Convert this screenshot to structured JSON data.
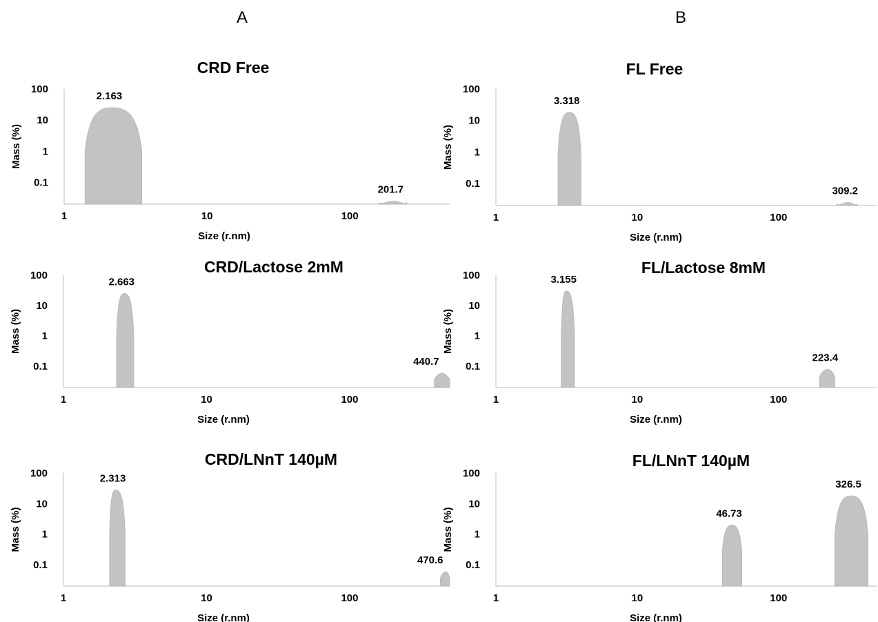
{
  "columns": [
    "A",
    "B"
  ],
  "chart_data": [
    {
      "type": "area",
      "title": "CRD Free",
      "xlabel": "Size (r.nm)",
      "ylabel": "Mass (%)",
      "x_scale": "log",
      "y_scale": "log",
      "xlim": [
        1,
        500
      ],
      "ylim": [
        0.02,
        100
      ],
      "x_ticks": [
        "1",
        "10",
        "100"
      ],
      "y_ticks": [
        "100",
        "10",
        "1",
        "0.1"
      ],
      "peaks": [
        {
          "label": "2.163",
          "x": 2.163,
          "peak_mass": 25,
          "x_start": 1.4,
          "x_end": 3.5
        },
        {
          "label": "201.7",
          "x": 201.7,
          "peak_mass": 0.025,
          "x_start": 160,
          "x_end": 250
        }
      ]
    },
    {
      "type": "area",
      "title": "FL Free",
      "xlabel": "Size (r.nm)",
      "ylabel": "Mass (%)",
      "x_scale": "log",
      "y_scale": "log",
      "xlim": [
        1,
        500
      ],
      "ylim": [
        0.02,
        100
      ],
      "x_ticks": [
        "1",
        "10",
        "100"
      ],
      "y_ticks": [
        "100",
        "10",
        "1",
        "0.1"
      ],
      "peaks": [
        {
          "label": "3.318",
          "x": 3.318,
          "peak_mass": 18,
          "x_start": 2.75,
          "x_end": 4.0
        },
        {
          "label": "309.2",
          "x": 309.2,
          "peak_mass": 0.025,
          "x_start": 260,
          "x_end": 360
        }
      ]
    },
    {
      "type": "area",
      "title": "CRD/Lactose 2mM",
      "xlabel": "Size (r.nm)",
      "ylabel": "Mass (%)",
      "x_scale": "log",
      "y_scale": "log",
      "xlim": [
        1,
        500
      ],
      "ylim": [
        0.02,
        100
      ],
      "x_ticks": [
        "1",
        "10",
        "100"
      ],
      "y_ticks": [
        "100",
        "10",
        "1",
        "0.1"
      ],
      "peaks": [
        {
          "label": "2.663",
          "x": 2.663,
          "peak_mass": 25,
          "x_start": 2.35,
          "x_end": 3.1
        },
        {
          "label": "440.7",
          "x": 440.7,
          "peak_mass": 0.06,
          "x_start": 390,
          "x_end": 500
        }
      ]
    },
    {
      "type": "area",
      "title": "FL/Lactose 8mM",
      "xlabel": "Size (r.nm)",
      "ylabel": "Mass (%)",
      "x_scale": "log",
      "y_scale": "log",
      "xlim": [
        1,
        500
      ],
      "ylim": [
        0.02,
        100
      ],
      "x_ticks": [
        "1",
        "10",
        "100"
      ],
      "y_ticks": [
        "100",
        "10",
        "1",
        "0.1"
      ],
      "peaks": [
        {
          "label": "3.155",
          "x": 3.155,
          "peak_mass": 30,
          "x_start": 2.9,
          "x_end": 3.6
        },
        {
          "label": "223.4",
          "x": 223.4,
          "peak_mass": 0.08,
          "x_start": 195,
          "x_end": 250
        }
      ]
    },
    {
      "type": "area",
      "title": "CRD/LNnT 140µM",
      "xlabel": "Size (r.nm)",
      "ylabel": "Mass (%)",
      "x_scale": "log",
      "y_scale": "log",
      "xlim": [
        1,
        500
      ],
      "ylim": [
        0.02,
        100
      ],
      "x_ticks": [
        "1",
        "10",
        "100"
      ],
      "y_ticks": [
        "100",
        "10",
        "1",
        "0.1"
      ],
      "peaks": [
        {
          "label": "2.313",
          "x": 2.313,
          "peak_mass": 28,
          "x_start": 2.1,
          "x_end": 2.7
        },
        {
          "label": "470.6",
          "x": 470.6,
          "peak_mass": 0.06,
          "x_start": 430,
          "x_end": 500
        }
      ]
    },
    {
      "type": "area",
      "title": "FL/LNnT 140µM",
      "xlabel": "Size (r.nm)",
      "ylabel": "Mass (%)",
      "x_scale": "log",
      "y_scale": "log",
      "xlim": [
        1,
        500
      ],
      "ylim": [
        0.02,
        100
      ],
      "x_ticks": [
        "1",
        "10",
        "100"
      ],
      "y_ticks": [
        "100",
        "10",
        "1",
        "0.1"
      ],
      "peaks": [
        {
          "label": "46.73",
          "x": 46.73,
          "peak_mass": 2,
          "x_start": 40,
          "x_end": 55
        },
        {
          "label": "326.5",
          "x": 326.5,
          "peak_mass": 18,
          "x_start": 250,
          "x_end": 430
        }
      ]
    }
  ]
}
